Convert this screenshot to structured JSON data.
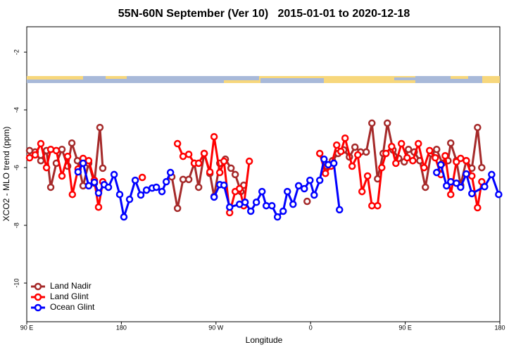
{
  "chart_data": {
    "type": "line",
    "title": "55N-60N September (Ver 10)   2015-01-01 to 2020-12-18",
    "xlabel": "Longitude",
    "ylabel": "XCO2 - MLO trend (ppm)",
    "xlim": [
      90,
      540
    ],
    "ylim": [
      -11.34,
      -1.12
    ],
    "xticks": [
      {
        "value": 90,
        "label": "90 E"
      },
      180,
      {
        "value": 270,
        "label": "90 W"
      },
      {
        "value": 360,
        "label": "0"
      },
      {
        "value": 450,
        "label": "90 E"
      },
      180
    ],
    "yticks": [
      -2,
      -4,
      -6,
      -8,
      -10
    ],
    "legend": "bottom-left",
    "series": [
      {
        "name": "Land Nadir",
        "color": "#a52a2a",
        "x": [
          92.7,
          98,
          103.4,
          108.8,
          112.8,
          118.1,
          123.5,
          128.9,
          132.9,
          138.2,
          143.6,
          148.9,
          154.3,
          159.6,
          162.3,
          195,
          228,
          233.4,
          238.7,
          244.1,
          249.4,
          253.5,
          258.8,
          264.2,
          268.2,
          273.6,
          278.9,
          284.3,
          288.3,
          293.7,
          296.4,
          330,
          356.7,
          366,
          375.4,
          380.8,
          386.1,
          391.5,
          396.9,
          402.2,
          407.6,
          412.9,
          418.3,
          423.7,
          429,
          433,
          438.4,
          443.8,
          449.1,
          453.1,
          458.5,
          463.9,
          469.2,
          474.6,
          479.9,
          485.3,
          490.7,
          493.3,
          498.7,
          502.7,
          508.1,
          513.4,
          518.8,
          522.8
        ],
        "values": [
          -5.41,
          -5.46,
          -5.76,
          -5.41,
          -6.68,
          -5.85,
          -5.37,
          -5.95,
          -5.15,
          -5.76,
          -6.63,
          -5.85,
          -6.54,
          -4.61,
          -6.02,
          null,
          -6.32,
          -7.41,
          -6.41,
          -6.41,
          -5.85,
          -6.68,
          -5.51,
          -6.2,
          -7.0,
          -5.85,
          -5.71,
          -6.02,
          -6.24,
          -6.83,
          -6.61,
          null,
          -7.17,
          null,
          -5.95,
          -5.76,
          -5.51,
          -5.39,
          -5.63,
          -5.29,
          -5.46,
          -5.46,
          -4.46,
          -6.39,
          -5.51,
          -4.46,
          -5.39,
          -5.68,
          -5.8,
          -5.37,
          -5.46,
          -5.76,
          -6.68,
          -5.51,
          -5.37,
          -5.85,
          -5.76,
          -5.15,
          -5.76,
          -6.61,
          -5.76,
          -6.02,
          -4.61,
          -6.0
        ]
      },
      {
        "name": "Land Glint",
        "color": "#ff0000",
        "x": [
          92.7,
          98,
          103.4,
          108.8,
          112.8,
          118.1,
          123.5,
          128.9,
          133.4,
          138.8,
          143.6,
          148.9,
          154.3,
          158.3,
          162.3,
          181,
          199.9,
          216,
          233.4,
          238.7,
          244.1,
          249.4,
          253.5,
          258.8,
          264.2,
          268.2,
          273.6,
          277.6,
          283,
          288.3,
          292.4,
          296.4,
          301.7,
          335,
          368.7,
          374.1,
          379.4,
          384.8,
          388.8,
          392.8,
          399.5,
          404.9,
          408.9,
          414.2,
          418.3,
          423.7,
          427.7,
          431.7,
          437.1,
          441.1,
          446.4,
          451.8,
          457.2,
          462.5,
          467.9,
          473.2,
          478.6,
          483.9,
          488,
          493.3,
          498.7,
          502.7,
          508.1,
          513.4,
          518.8,
          522.8
        ],
        "values": [
          -5.66,
          -5.56,
          -5.17,
          -6.0,
          -5.37,
          -5.41,
          -6.29,
          -5.61,
          -6.93,
          -6.05,
          -5.68,
          -5.76,
          -6.44,
          -7.37,
          -6.49,
          null,
          -6.34,
          null,
          -5.17,
          -5.61,
          -5.54,
          -5.85,
          -5.85,
          -5.51,
          -6.15,
          -4.93,
          -6.17,
          -5.78,
          -7.56,
          -6.83,
          -6.73,
          -7.32,
          -5.78,
          null,
          -5.51,
          -6.2,
          -5.95,
          -5.22,
          -5.44,
          -4.98,
          -5.95,
          -5.56,
          -6.83,
          -6.29,
          -7.32,
          -7.32,
          -6.0,
          -5.51,
          -5.27,
          -5.85,
          -5.17,
          -5.66,
          -5.76,
          -5.17,
          -6.0,
          -5.41,
          -5.66,
          -6.24,
          -5.59,
          -6.93,
          -5.8,
          -5.68,
          -5.76,
          -6.29,
          -7.39,
          -6.49
        ]
      },
      {
        "name": "Ocean Glint",
        "color": "#0000ff",
        "x": [
          138.8,
          143.6,
          148.9,
          154.3,
          158.3,
          163.7,
          167.7,
          173.1,
          178.4,
          182.4,
          187.8,
          193.2,
          198.5,
          203.9,
          209.3,
          213.3,
          218.6,
          222.7,
          226.7,
          247,
          268.2,
          273.6,
          277.6,
          283,
          292.4,
          297.7,
          303.1,
          308.4,
          313.8,
          317.8,
          323.2,
          328.5,
          333.9,
          337.9,
          343.3,
          348.6,
          354,
          359.4,
          363.4,
          368.7,
          372.8,
          376.8,
          382.1,
          387.5,
          433,
          479.9,
          483.9,
          489.3,
          493.3,
          498.7,
          502.7,
          508.1,
          513.4,
          525.5,
          532.2,
          538.9
        ],
        "values": [
          -6.15,
          -5.85,
          -6.63,
          -6.51,
          -6.88,
          -6.59,
          -6.68,
          -6.24,
          -6.93,
          -7.71,
          -7.1,
          -6.44,
          -6.95,
          -6.78,
          -6.71,
          -6.68,
          -6.83,
          -6.49,
          -6.17,
          null,
          -7.02,
          -6.59,
          -6.61,
          -7.37,
          -7.27,
          -7.2,
          -7.51,
          -7.2,
          -6.83,
          -7.32,
          -7.32,
          -7.71,
          -7.51,
          -6.83,
          -7.27,
          -6.63,
          -6.73,
          -6.44,
          -6.95,
          -6.44,
          -5.71,
          -5.9,
          -5.85,
          -7.46,
          null,
          -6.17,
          -5.9,
          -6.63,
          -6.49,
          -6.54,
          -6.68,
          -6.22,
          -6.9,
          -6.66,
          -6.24,
          -6.93
        ]
      }
    ]
  }
}
